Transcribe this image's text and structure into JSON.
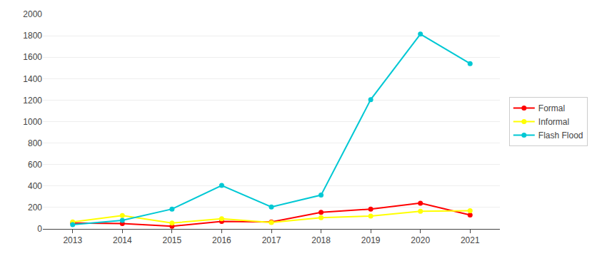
{
  "chart_data": {
    "type": "line",
    "x": [
      2013,
      2014,
      2015,
      2016,
      2017,
      2018,
      2019,
      2020,
      2021
    ],
    "series": [
      {
        "name": "Formal",
        "color": "#ff0000",
        "values": [
          55,
          50,
          25,
          70,
          65,
          155,
          185,
          240,
          130
        ]
      },
      {
        "name": "Informal",
        "color": "#ffff00",
        "values": [
          65,
          125,
          55,
          95,
          60,
          105,
          120,
          165,
          170
        ]
      },
      {
        "name": "Flash Flood",
        "color": "#00c8d4",
        "values": [
          40,
          80,
          185,
          405,
          205,
          315,
          1205,
          1815,
          1540
        ]
      }
    ],
    "xlim": [
      2012.4,
      2021.6
    ],
    "xticks": [
      2013,
      2014,
      2015,
      2016,
      2017,
      2018,
      2019,
      2020,
      2021
    ],
    "ylim": [
      0,
      2000
    ],
    "yticks": [
      0,
      200,
      400,
      600,
      800,
      1000,
      1200,
      1400,
      1600,
      1800,
      2000
    ],
    "grid": true,
    "legend": "right",
    "marker": "circle"
  }
}
